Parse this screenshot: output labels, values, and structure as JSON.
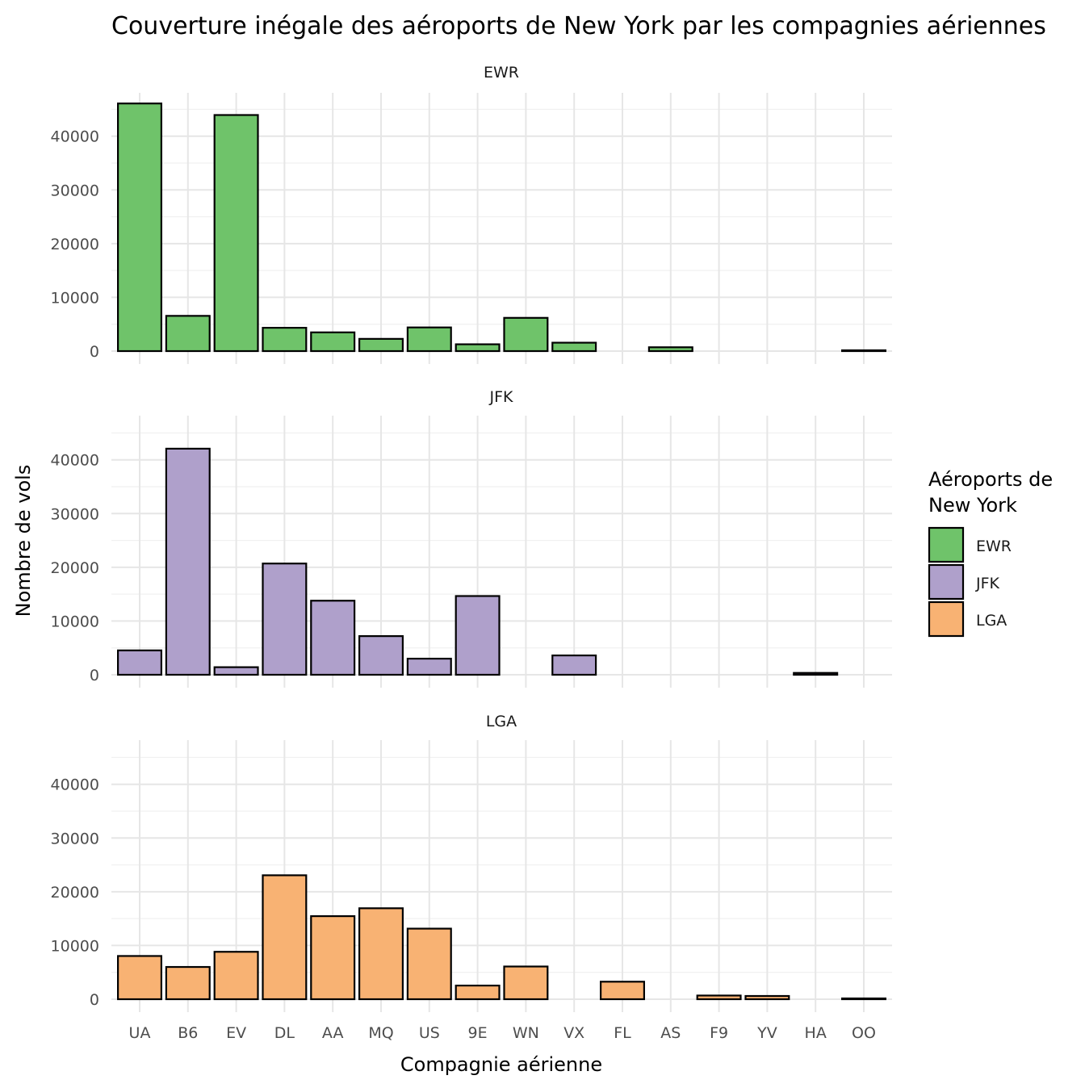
{
  "chart_data": {
    "type": "bar",
    "title": "Couverture inégale des aéroports de New York par les compagnies aériennes",
    "xlabel": "Compagnie aérienne",
    "ylabel": "Nombre de vols",
    "ylim": [
      0,
      46087
    ],
    "yticks": [
      0,
      10000,
      20000,
      30000,
      40000
    ],
    "grid": true,
    "legend": {
      "title_lines": [
        "Aéroports de",
        "New York"
      ],
      "position": "right",
      "entries": [
        {
          "name": "EWR",
          "color": "#6fc36a"
        },
        {
          "name": "JFK",
          "color": "#afa0cb"
        },
        {
          "name": "LGA",
          "color": "#f8b273"
        }
      ]
    },
    "categories": [
      "UA",
      "B6",
      "EV",
      "DL",
      "AA",
      "MQ",
      "US",
      "9E",
      "WN",
      "VX",
      "FL",
      "AS",
      "F9",
      "YV",
      "HA",
      "OO"
    ],
    "facets": [
      {
        "name": "EWR",
        "color": "#6fc36a",
        "values": [
          46087,
          6557,
          43939,
          4342,
          3487,
          2276,
          4405,
          1268,
          6188,
          1566,
          null,
          714,
          null,
          null,
          null,
          6
        ]
      },
      {
        "name": "JFK",
        "color": "#afa0cb",
        "values": [
          4534,
          42076,
          1408,
          20701,
          13783,
          7193,
          2995,
          14651,
          null,
          3596,
          null,
          null,
          null,
          null,
          342,
          null
        ]
      },
      {
        "name": "LGA",
        "color": "#f8b273",
        "values": [
          8044,
          6002,
          8826,
          23067,
          15459,
          16928,
          13136,
          2541,
          6087,
          null,
          3260,
          null,
          685,
          601,
          null,
          26
        ]
      }
    ]
  }
}
